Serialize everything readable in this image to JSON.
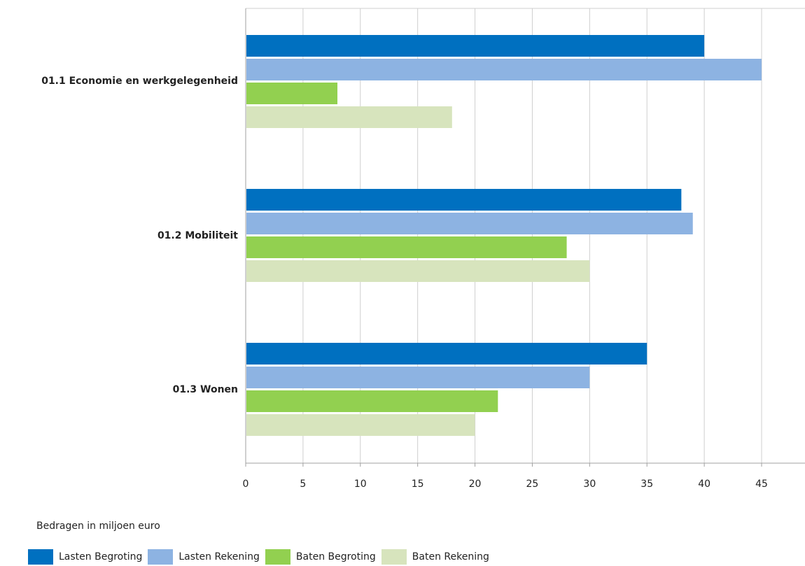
{
  "chart_data": {
    "type": "bar",
    "orientation": "horizontal",
    "categories": [
      "01.1 Economie en werkgelegenheid",
      "01.2 Mobiliteit",
      "01.3 Wonen"
    ],
    "series": [
      {
        "name": "Lasten Begroting",
        "color": "#0070c0",
        "values": [
          40,
          38,
          35
        ]
      },
      {
        "name": "Lasten Rekening",
        "color": "#8db3e2",
        "values": [
          45,
          39,
          30
        ]
      },
      {
        "name": "Baten Begroting",
        "color": "#92d050",
        "values": [
          8,
          28,
          22
        ]
      },
      {
        "name": "Baten Rekening",
        "color": "#d7e4bd",
        "values": [
          18,
          30,
          20
        ]
      }
    ],
    "xticks": [
      "0",
      "5",
      "10",
      "15",
      "20",
      "25",
      "30",
      "35",
      "40",
      "45"
    ],
    "xlim": [
      0,
      48
    ],
    "unit_note": "Bedragen in miljoen euro",
    "grid": true,
    "legend_position": "bottom-left"
  }
}
